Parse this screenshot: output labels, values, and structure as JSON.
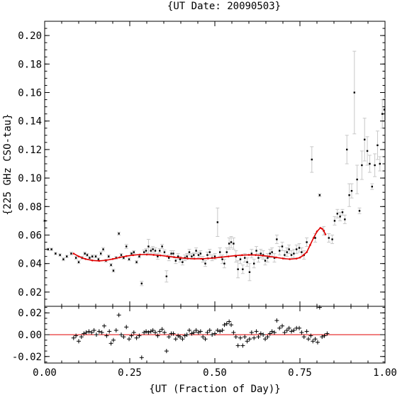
{
  "chart_data": {
    "type": "scatter",
    "title": "{UT Date: 20090503}",
    "xlabel": "{UT (Fraction of Day)}",
    "ylabel": "{225 GHz CSO-tau}",
    "xlim": [
      0.0,
      1.0
    ],
    "x_ticks": [
      "0.00",
      "0.25",
      "0.50",
      "0.75",
      "1.00"
    ],
    "main": {
      "ylim": [
        0.01,
        0.21
      ],
      "y_ticks": [
        "0.02",
        "0.04",
        "0.06",
        "0.08",
        "0.10",
        "0.12",
        "0.14",
        "0.16",
        "0.18",
        "0.20"
      ],
      "grid": false,
      "points": [
        [
          0.0,
          0.07,
          0.0005
        ],
        [
          0.01,
          0.05,
          0.0008
        ],
        [
          0.02,
          0.05,
          0.0008
        ],
        [
          0.032,
          0.047,
          0.0008
        ],
        [
          0.045,
          0.046,
          0.0008
        ],
        [
          0.055,
          0.043,
          0.001
        ],
        [
          0.065,
          0.045,
          0.0008
        ],
        [
          0.078,
          0.047,
          0.001
        ],
        [
          0.092,
          0.044,
          0.001
        ],
        [
          0.1,
          0.041,
          0.001
        ],
        [
          0.11,
          0.044,
          0.001
        ],
        [
          0.118,
          0.047,
          0.001
        ],
        [
          0.125,
          0.046,
          0.001
        ],
        [
          0.132,
          0.044,
          0.001
        ],
        [
          0.14,
          0.045,
          0.001
        ],
        [
          0.15,
          0.045,
          0.001
        ],
        [
          0.158,
          0.043,
          0.001
        ],
        [
          0.165,
          0.047,
          0.0012
        ],
        [
          0.172,
          0.05,
          0.0012
        ],
        [
          0.18,
          0.042,
          0.001
        ],
        [
          0.188,
          0.045,
          0.001
        ],
        [
          0.195,
          0.039,
          0.001
        ],
        [
          0.202,
          0.035,
          0.001
        ],
        [
          0.21,
          0.044,
          0.001
        ],
        [
          0.218,
          0.061,
          0.001
        ],
        [
          0.225,
          0.046,
          0.001
        ],
        [
          0.232,
          0.044,
          0.001
        ],
        [
          0.24,
          0.052,
          0.0015
        ],
        [
          0.248,
          0.043,
          0.001
        ],
        [
          0.255,
          0.047,
          0.001
        ],
        [
          0.262,
          0.048,
          0.001
        ],
        [
          0.27,
          0.041,
          0.001
        ],
        [
          0.278,
          0.045,
          0.001
        ],
        [
          0.285,
          0.026,
          0.0015
        ],
        [
          0.292,
          0.048,
          0.0015
        ],
        [
          0.298,
          0.049,
          0.0015
        ],
        [
          0.305,
          0.052,
          0.005
        ],
        [
          0.312,
          0.049,
          0.002
        ],
        [
          0.318,
          0.05,
          0.002
        ],
        [
          0.325,
          0.049,
          0.002
        ],
        [
          0.332,
          0.045,
          0.002
        ],
        [
          0.338,
          0.049,
          0.0015
        ],
        [
          0.345,
          0.052,
          0.0015
        ],
        [
          0.352,
          0.048,
          0.0015
        ],
        [
          0.358,
          0.031,
          0.004
        ],
        [
          0.365,
          0.044,
          0.002
        ],
        [
          0.372,
          0.047,
          0.002
        ],
        [
          0.378,
          0.047,
          0.002
        ],
        [
          0.385,
          0.042,
          0.002
        ],
        [
          0.392,
          0.045,
          0.002
        ],
        [
          0.398,
          0.043,
          0.002
        ],
        [
          0.405,
          0.041,
          0.002
        ],
        [
          0.412,
          0.044,
          0.002
        ],
        [
          0.418,
          0.045,
          0.002
        ],
        [
          0.425,
          0.048,
          0.002
        ],
        [
          0.432,
          0.045,
          0.002
        ],
        [
          0.438,
          0.046,
          0.0015
        ],
        [
          0.445,
          0.049,
          0.002
        ],
        [
          0.452,
          0.046,
          0.002
        ],
        [
          0.458,
          0.047,
          0.002
        ],
        [
          0.465,
          0.043,
          0.002
        ],
        [
          0.472,
          0.04,
          0.002
        ],
        [
          0.478,
          0.046,
          0.002
        ],
        [
          0.485,
          0.048,
          0.002
        ],
        [
          0.492,
          0.044,
          0.002
        ],
        [
          0.5,
          0.045,
          0.002
        ],
        [
          0.508,
          0.069,
          0.01
        ],
        [
          0.515,
          0.048,
          0.003
        ],
        [
          0.522,
          0.043,
          0.003
        ],
        [
          0.528,
          0.04,
          0.003
        ],
        [
          0.535,
          0.048,
          0.003
        ],
        [
          0.542,
          0.054,
          0.004
        ],
        [
          0.548,
          0.055,
          0.004
        ],
        [
          0.555,
          0.054,
          0.004
        ],
        [
          0.562,
          0.045,
          0.004
        ],
        [
          0.568,
          0.036,
          0.006
        ],
        [
          0.575,
          0.043,
          0.003
        ],
        [
          0.582,
          0.036,
          0.003
        ],
        [
          0.588,
          0.044,
          0.003
        ],
        [
          0.595,
          0.041,
          0.003
        ],
        [
          0.602,
          0.034,
          0.006
        ],
        [
          0.608,
          0.047,
          0.003
        ],
        [
          0.615,
          0.04,
          0.003
        ],
        [
          0.622,
          0.049,
          0.003
        ],
        [
          0.628,
          0.044,
          0.003
        ],
        [
          0.635,
          0.047,
          0.003
        ],
        [
          0.642,
          0.046,
          0.003
        ],
        [
          0.648,
          0.042,
          0.003
        ],
        [
          0.655,
          0.044,
          0.003
        ],
        [
          0.662,
          0.047,
          0.003
        ],
        [
          0.668,
          0.048,
          0.003
        ],
        [
          0.675,
          0.044,
          0.003
        ],
        [
          0.682,
          0.057,
          0.003
        ],
        [
          0.69,
          0.049,
          0.003
        ],
        [
          0.698,
          0.052,
          0.003
        ],
        [
          0.705,
          0.046,
          0.003
        ],
        [
          0.712,
          0.048,
          0.003
        ],
        [
          0.718,
          0.05,
          0.003
        ],
        [
          0.725,
          0.046,
          0.003
        ],
        [
          0.732,
          0.047,
          0.003
        ],
        [
          0.74,
          0.05,
          0.003
        ],
        [
          0.748,
          0.051,
          0.003
        ],
        [
          0.755,
          0.048,
          0.003
        ],
        [
          0.762,
          0.046,
          0.003
        ],
        [
          0.77,
          0.055,
          0.003
        ],
        [
          0.785,
          0.113,
          0.009
        ],
        [
          0.795,
          0.058,
          0.003
        ],
        [
          0.808,
          0.088,
          0.001
        ],
        [
          0.82,
          0.063,
          0.003
        ],
        [
          0.835,
          0.058,
          0.003
        ],
        [
          0.845,
          0.057,
          0.003
        ],
        [
          0.852,
          0.07,
          0.003
        ],
        [
          0.86,
          0.075,
          0.003
        ],
        [
          0.868,
          0.073,
          0.003
        ],
        [
          0.875,
          0.076,
          0.002
        ],
        [
          0.882,
          0.071,
          0.003
        ],
        [
          0.888,
          0.12,
          0.01
        ],
        [
          0.895,
          0.088,
          0.008
        ],
        [
          0.902,
          0.091,
          0.005
        ],
        [
          0.91,
          0.16,
          0.029
        ],
        [
          0.918,
          0.099,
          0.01
        ],
        [
          0.925,
          0.077,
          0.002
        ],
        [
          0.932,
          0.109,
          0.01
        ],
        [
          0.94,
          0.127,
          0.015
        ],
        [
          0.948,
          0.119,
          0.01
        ],
        [
          0.955,
          0.11,
          0.006
        ],
        [
          0.962,
          0.094,
          0.002
        ],
        [
          0.97,
          0.109,
          0.008
        ],
        [
          0.978,
          0.123,
          0.01
        ],
        [
          0.985,
          0.11,
          0.005
        ],
        [
          0.992,
          0.145,
          0.01
        ],
        [
          0.998,
          0.148,
          0.008
        ]
      ],
      "fit_curve": [
        [
          0.085,
          0.047
        ],
        [
          0.1,
          0.045
        ],
        [
          0.12,
          0.0432
        ],
        [
          0.14,
          0.0422
        ],
        [
          0.16,
          0.0419
        ],
        [
          0.18,
          0.0423
        ],
        [
          0.2,
          0.0432
        ],
        [
          0.22,
          0.0443
        ],
        [
          0.24,
          0.0452
        ],
        [
          0.26,
          0.0459
        ],
        [
          0.28,
          0.0463
        ],
        [
          0.3,
          0.0463
        ],
        [
          0.32,
          0.0461
        ],
        [
          0.34,
          0.0457
        ],
        [
          0.36,
          0.0451
        ],
        [
          0.38,
          0.0445
        ],
        [
          0.4,
          0.044
        ],
        [
          0.42,
          0.0436
        ],
        [
          0.44,
          0.0434
        ],
        [
          0.46,
          0.0434
        ],
        [
          0.48,
          0.0436
        ],
        [
          0.5,
          0.044
        ],
        [
          0.52,
          0.0445
        ],
        [
          0.54,
          0.045
        ],
        [
          0.56,
          0.0455
        ],
        [
          0.58,
          0.0459
        ],
        [
          0.6,
          0.0461
        ],
        [
          0.62,
          0.046
        ],
        [
          0.64,
          0.0456
        ],
        [
          0.66,
          0.045
        ],
        [
          0.68,
          0.0443
        ],
        [
          0.7,
          0.0436
        ],
        [
          0.72,
          0.0431
        ],
        [
          0.74,
          0.0435
        ],
        [
          0.75,
          0.0442
        ],
        [
          0.76,
          0.0458
        ],
        [
          0.77,
          0.048
        ],
        [
          0.78,
          0.053
        ],
        [
          0.79,
          0.058
        ],
        [
          0.8,
          0.0625
        ],
        [
          0.81,
          0.065
        ],
        [
          0.815,
          0.0645
        ],
        [
          0.82,
          0.063
        ],
        [
          0.825,
          0.0605
        ]
      ]
    },
    "residuals": {
      "ylim": [
        -0.026,
        0.026
      ],
      "y_ticks": [
        "0.02",
        "0.00",
        "-0.02"
      ],
      "zero_line": 0.0,
      "points": [
        [
          0.085,
          -0.003
        ],
        [
          0.092,
          -0.001
        ],
        [
          0.1,
          -0.006
        ],
        [
          0.108,
          -0.002
        ],
        [
          0.115,
          0.001
        ],
        [
          0.122,
          0.002
        ],
        [
          0.13,
          0.003
        ],
        [
          0.138,
          0.002
        ],
        [
          0.145,
          0.004
        ],
        [
          0.152,
          0.0
        ],
        [
          0.16,
          0.003
        ],
        [
          0.168,
          0.002
        ],
        [
          0.175,
          0.008
        ],
        [
          0.182,
          -0.001
        ],
        [
          0.19,
          0.003
        ],
        [
          0.195,
          -0.008
        ],
        [
          0.202,
          -0.005
        ],
        [
          0.21,
          0.004
        ],
        [
          0.218,
          0.018
        ],
        [
          0.225,
          0.0
        ],
        [
          0.232,
          -0.002
        ],
        [
          0.24,
          0.007
        ],
        [
          0.248,
          -0.004
        ],
        [
          0.255,
          -0.001
        ],
        [
          0.262,
          0.002
        ],
        [
          0.27,
          -0.003
        ],
        [
          0.278,
          -0.001
        ],
        [
          0.285,
          -0.021
        ],
        [
          0.292,
          0.002
        ],
        [
          0.298,
          0.003
        ],
        [
          0.305,
          0.002
        ],
        [
          0.312,
          0.003
        ],
        [
          0.318,
          0.004
        ],
        [
          0.325,
          0.002
        ],
        [
          0.332,
          -0.001
        ],
        [
          0.338,
          0.003
        ],
        [
          0.345,
          0.005
        ],
        [
          0.352,
          0.002
        ],
        [
          0.358,
          -0.015
        ],
        [
          0.365,
          -0.002
        ],
        [
          0.372,
          0.001
        ],
        [
          0.378,
          0.001
        ],
        [
          0.385,
          -0.004
        ],
        [
          0.392,
          -0.001
        ],
        [
          0.398,
          -0.002
        ],
        [
          0.405,
          -0.004
        ],
        [
          0.412,
          -0.001
        ],
        [
          0.418,
          0.0
        ],
        [
          0.425,
          0.004
        ],
        [
          0.432,
          0.001
        ],
        [
          0.438,
          0.002
        ],
        [
          0.445,
          0.004
        ],
        [
          0.452,
          0.002
        ],
        [
          0.458,
          0.003
        ],
        [
          0.465,
          -0.002
        ],
        [
          0.472,
          -0.004
        ],
        [
          0.478,
          0.002
        ],
        [
          0.485,
          0.004
        ],
        [
          0.492,
          0.0
        ],
        [
          0.5,
          0.001
        ],
        [
          0.508,
          0.004
        ],
        [
          0.515,
          0.003
        ],
        [
          0.522,
          0.004
        ],
        [
          0.528,
          0.009
        ],
        [
          0.535,
          0.01
        ],
        [
          0.542,
          0.012
        ],
        [
          0.548,
          0.009
        ],
        [
          0.555,
          0.002
        ],
        [
          0.562,
          -0.002
        ],
        [
          0.568,
          -0.01
        ],
        [
          0.575,
          -0.003
        ],
        [
          0.582,
          -0.01
        ],
        [
          0.588,
          -0.002
        ],
        [
          0.595,
          -0.006
        ],
        [
          0.602,
          -0.004
        ],
        [
          0.608,
          0.002
        ],
        [
          0.615,
          -0.003
        ],
        [
          0.622,
          0.003
        ],
        [
          0.628,
          -0.002
        ],
        [
          0.635,
          0.001
        ],
        [
          0.642,
          0.0
        ],
        [
          0.648,
          -0.004
        ],
        [
          0.655,
          -0.002
        ],
        [
          0.662,
          0.001
        ],
        [
          0.668,
          0.003
        ],
        [
          0.675,
          0.002
        ],
        [
          0.682,
          0.013
        ],
        [
          0.69,
          0.006
        ],
        [
          0.698,
          0.008
        ],
        [
          0.705,
          0.002
        ],
        [
          0.712,
          0.004
        ],
        [
          0.718,
          0.006
        ],
        [
          0.725,
          0.003
        ],
        [
          0.732,
          0.004
        ],
        [
          0.74,
          0.006
        ],
        [
          0.748,
          0.006
        ],
        [
          0.755,
          0.002
        ],
        [
          0.762,
          -0.002
        ],
        [
          0.77,
          0.003
        ],
        [
          0.775,
          -0.004
        ],
        [
          0.782,
          -0.001
        ],
        [
          0.788,
          -0.006
        ],
        [
          0.795,
          -0.004
        ],
        [
          0.802,
          -0.007
        ],
        [
          0.808,
          0.025
        ],
        [
          0.815,
          -0.002
        ],
        [
          0.822,
          -0.001
        ],
        [
          0.83,
          0.001
        ]
      ]
    }
  }
}
